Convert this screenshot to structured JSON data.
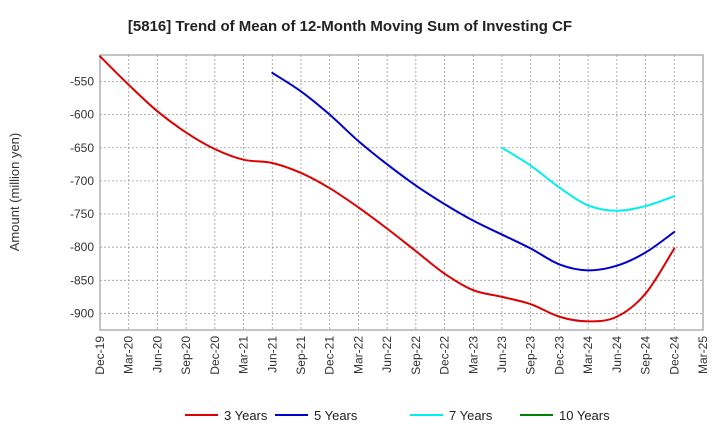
{
  "chart_data": {
    "type": "line",
    "title": "[5816]  Trend of Mean of 12-Month Moving Sum of Investing CF",
    "xlabel": "",
    "ylabel": "Amount (million yen)",
    "ylim": [
      -925,
      -510
    ],
    "yticks": [
      -550,
      -600,
      -650,
      -700,
      -750,
      -800,
      -850,
      -900
    ],
    "categories": [
      "Dec-19",
      "Mar-20",
      "Jun-20",
      "Sep-20",
      "Dec-20",
      "Mar-21",
      "Jun-21",
      "Sep-21",
      "Dec-21",
      "Mar-22",
      "Jun-22",
      "Sep-22",
      "Dec-22",
      "Mar-23",
      "Jun-23",
      "Sep-23",
      "Dec-23",
      "Mar-24",
      "Jun-24",
      "Sep-24",
      "Dec-24",
      "Mar-25"
    ],
    "grid": true,
    "legend_position": "bottom",
    "series": [
      {
        "name": "3 Years",
        "color": "#dd0000",
        "values": [
          -512,
          -555,
          -595,
          -627,
          -652,
          -668,
          -673,
          -688,
          -711,
          -740,
          -772,
          -806,
          -840,
          -865,
          -875,
          -886,
          -905,
          -912,
          -905,
          -870,
          -802,
          null
        ]
      },
      {
        "name": "5 Years",
        "color": "#0000cc",
        "values": [
          null,
          null,
          null,
          null,
          null,
          null,
          -537,
          -565,
          -600,
          -640,
          -675,
          -707,
          -735,
          -760,
          -781,
          -802,
          -826,
          -835,
          -828,
          -808,
          -777,
          null
        ]
      },
      {
        "name": "7 Years",
        "color": "#00eeee",
        "values": [
          null,
          null,
          null,
          null,
          null,
          null,
          null,
          null,
          null,
          null,
          null,
          null,
          null,
          null,
          -650,
          -677,
          -710,
          -737,
          -745,
          -738,
          -723,
          null
        ]
      },
      {
        "name": "10 Years",
        "color": "#008000",
        "values": [
          null,
          null,
          null,
          null,
          null,
          null,
          null,
          null,
          null,
          null,
          null,
          null,
          null,
          null,
          null,
          null,
          null,
          null,
          null,
          null,
          null,
          null
        ]
      }
    ]
  }
}
